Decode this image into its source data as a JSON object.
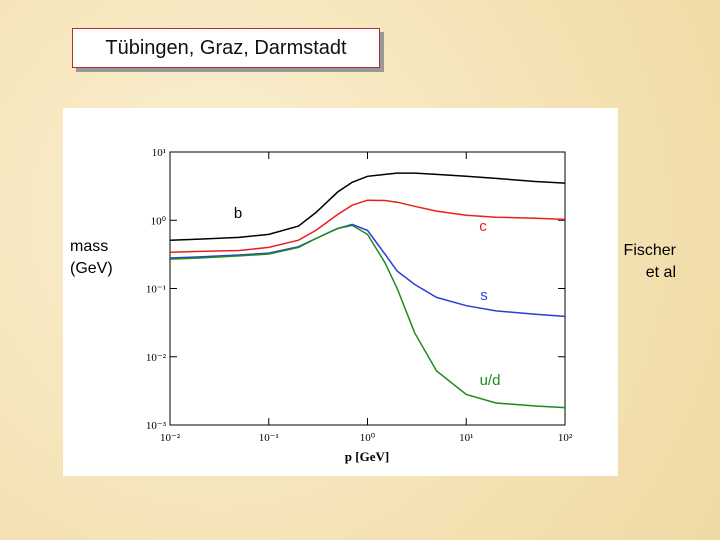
{
  "slide_title": "Tübingen, Graz, Darmstadt",
  "chart_data": {
    "type": "line",
    "xlabel": "p [GeV]",
    "ylabel": "mass (GeV)",
    "annotation": "Fischer et al",
    "xscale": "log",
    "yscale": "log",
    "x": [
      0.01,
      0.02,
      0.05,
      0.1,
      0.2,
      0.3,
      0.5,
      0.7,
      1,
      1.5,
      2,
      3,
      5,
      10,
      20,
      50,
      100
    ],
    "series": [
      {
        "name": "b",
        "color": "#000000",
        "values": [
          0.51,
          0.53,
          0.56,
          0.62,
          0.82,
          1.3,
          2.6,
          3.6,
          4.4,
          4.7,
          4.9,
          4.9,
          4.7,
          4.4,
          4.1,
          3.7,
          3.5
        ]
      },
      {
        "name": "c",
        "color": "#e8201c",
        "values": [
          0.34,
          0.35,
          0.36,
          0.4,
          0.51,
          0.71,
          1.22,
          1.66,
          1.97,
          1.95,
          1.84,
          1.6,
          1.36,
          1.18,
          1.11,
          1.07,
          1.03
        ]
      },
      {
        "name": "s",
        "color": "#2b3fd6",
        "values": [
          0.28,
          0.29,
          0.31,
          0.33,
          0.41,
          0.54,
          0.76,
          0.87,
          0.71,
          0.32,
          0.18,
          0.115,
          0.074,
          0.056,
          0.047,
          0.042,
          0.039
        ]
      },
      {
        "name": "u/d",
        "color": "#1e8a1e",
        "values": [
          0.27,
          0.28,
          0.3,
          0.32,
          0.4,
          0.54,
          0.76,
          0.84,
          0.62,
          0.24,
          0.1,
          0.0225,
          0.0062,
          0.0028,
          0.0021,
          0.0019,
          0.0018
        ]
      }
    ],
    "xlim": [
      0.01,
      100
    ],
    "xticks": [
      {
        "value": 0.01,
        "label": "10⁻²"
      },
      {
        "value": 0.1,
        "label": "10⁻¹"
      },
      {
        "value": 1,
        "label": "10⁰"
      },
      {
        "value": 10,
        "label": "10¹"
      },
      {
        "value": 100,
        "label": "10²"
      }
    ],
    "ylim": [
      0.001,
      10
    ],
    "yticks": [
      {
        "value": 0.001,
        "label": "10⁻³"
      },
      {
        "value": 0.01,
        "label": "10⁻²"
      },
      {
        "value": 0.1,
        "label": "10⁻¹"
      },
      {
        "value": 1,
        "label": "10⁰"
      },
      {
        "value": 10,
        "label": "10¹"
      }
    ]
  }
}
